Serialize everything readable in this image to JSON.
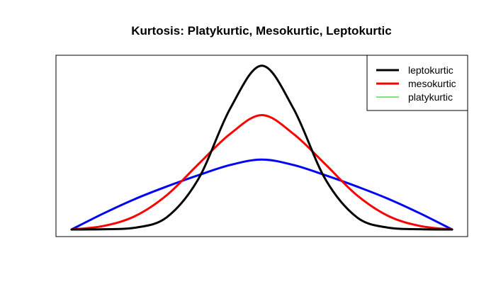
{
  "chart_data": {
    "type": "line",
    "title": "Kurtosis: Platykurtic, Mesokurtic, Leptokurtic",
    "xlabel": "",
    "ylabel": "",
    "axes_visible": false,
    "grid": false,
    "legend_position": "top-right",
    "xlim": [
      -3,
      3
    ],
    "ylim": [
      0,
      0.6
    ],
    "x": [
      -3,
      -2.5,
      -2,
      -1.5,
      -1,
      -0.5,
      0,
      0.5,
      1,
      1.5,
      2,
      2.5,
      3
    ],
    "series": [
      {
        "name": "leptokurtic",
        "color": "#000000",
        "legend_line_width": 3,
        "values": [
          0.0,
          0.001,
          0.006,
          0.042,
          0.174,
          0.416,
          0.564,
          0.416,
          0.174,
          0.042,
          0.006,
          0.001,
          0.0
        ]
      },
      {
        "name": "mesokurtic",
        "color": "#ff0000",
        "legend_line_width": 3,
        "values": [
          0.0,
          0.012,
          0.046,
          0.118,
          0.225,
          0.329,
          0.394,
          0.329,
          0.225,
          0.118,
          0.046,
          0.012,
          0.0
        ]
      },
      {
        "name": "platykurtic",
        "color": "#00c800",
        "plot_color": "#0000ff",
        "legend_line_width": 1,
        "values": [
          0.0,
          0.055,
          0.105,
          0.148,
          0.187,
          0.222,
          0.241,
          0.222,
          0.187,
          0.148,
          0.105,
          0.055,
          0.0
        ]
      }
    ]
  }
}
